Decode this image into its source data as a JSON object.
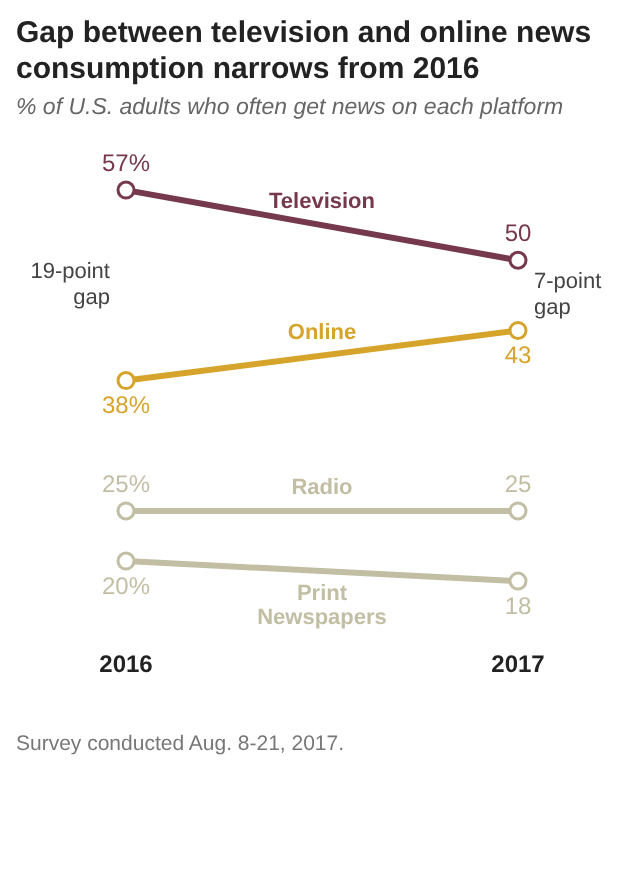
{
  "chart_data": {
    "type": "line",
    "title": "Gap between television and online news consumption narrows from 2016",
    "subtitle": "% of U.S. adults who often get news on each platform",
    "categories": [
      "2016",
      "2017"
    ],
    "marker": "circle",
    "grid": false,
    "legend": false,
    "series": [
      {
        "name": "Television",
        "color": "#75384c",
        "values": [
          57,
          50
        ],
        "value_labels": [
          "57%",
          "50"
        ]
      },
      {
        "name": "Online",
        "color": "#d6a42b",
        "values": [
          38,
          43
        ],
        "value_labels": [
          "38%",
          "43"
        ]
      },
      {
        "name": "Radio",
        "color": "#c2bea4",
        "values": [
          25,
          25
        ],
        "value_labels": [
          "25%",
          "25"
        ]
      },
      {
        "name": "Print Newspapers",
        "color": "#c2bea4",
        "values": [
          20,
          18
        ],
        "value_labels": [
          "20%",
          "18"
        ]
      }
    ],
    "annotations": [
      "19-point gap",
      "7-point gap",
      "Survey conducted Aug. 8-21, 2017."
    ]
  }
}
